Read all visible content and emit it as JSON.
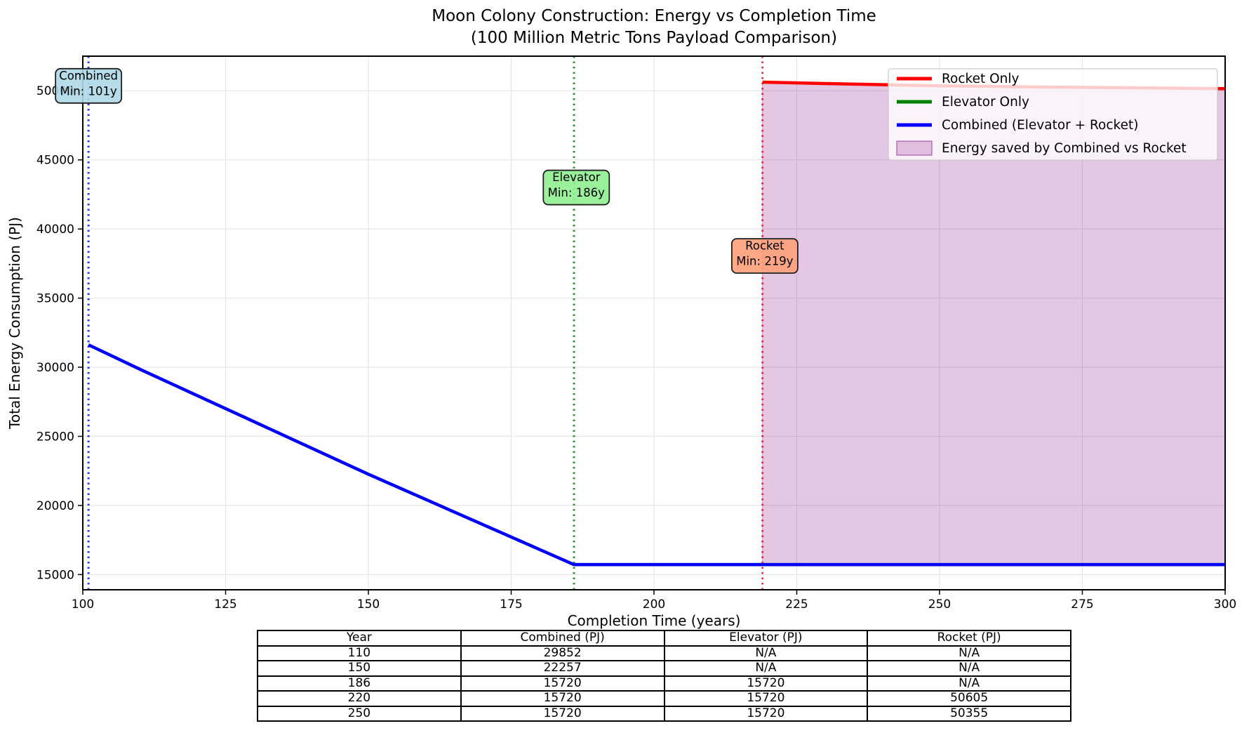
{
  "chart_data": {
    "type": "line",
    "title": "Moon Colony Construction: Energy vs Completion Time",
    "subtitle": "(100 Million Metric Tons Payload Comparison)",
    "xlabel": "Completion Time (years)",
    "ylabel": "Total Energy Consumption (PJ)",
    "xlim": [
      100,
      300
    ],
    "ylim": [
      13900,
      52500
    ],
    "xticks": [
      100,
      125,
      150,
      175,
      200,
      225,
      250,
      275,
      300
    ],
    "yticks": [
      15000,
      20000,
      25000,
      30000,
      35000,
      40000,
      45000,
      50000
    ],
    "grid": true,
    "grid_color": "#e6e6e6",
    "legend_position": "upper right",
    "series": [
      {
        "name": "Rocket Only",
        "color": "#ff0000",
        "x": [
          219,
          230,
          250,
          270,
          300
        ],
        "y": [
          50620,
          50520,
          50355,
          50260,
          50150
        ]
      },
      {
        "name": "Elevator Only",
        "color": "#008000",
        "x": [
          186,
          300
        ],
        "y": [
          15720,
          15720
        ]
      },
      {
        "name": "Combined (Elevator + Rocket)",
        "color": "#0000ff",
        "x": [
          101,
          110,
          150,
          186,
          220,
          250,
          300
        ],
        "y": [
          31620,
          29852,
          22257,
          15720,
          15720,
          15720,
          15720
        ]
      }
    ],
    "fill_between": {
      "name": "Energy saved by Combined vs Rocket",
      "x_start": 219,
      "x_end": 300,
      "baseline": 15720,
      "fill": "rgba(128,0,128,0.22)",
      "edge": "rgba(128,0,128,0.35)"
    },
    "vlines": [
      {
        "x": 101,
        "color": "#0000ff",
        "style": "dotted"
      },
      {
        "x": 186,
        "color": "#008000",
        "style": "dotted"
      },
      {
        "x": 219,
        "color": "#ff0000",
        "style": "dotted"
      }
    ],
    "annotations": [
      {
        "line1": "Combined",
        "line2": "Min: 101y",
        "x": 101,
        "y": 50350,
        "bg": "#add8e6"
      },
      {
        "line1": "Elevator",
        "line2": "Min: 186y",
        "x": 186.4,
        "y": 43000,
        "bg": "#90ee90"
      },
      {
        "line1": "Rocket",
        "line2": "Min: 219y",
        "x": 219.4,
        "y": 38050,
        "bg": "#ffa07a"
      }
    ]
  },
  "data_table": {
    "headers": [
      "Year",
      "Combined (PJ)",
      "Elevator (PJ)",
      "Rocket (PJ)"
    ],
    "rows": [
      [
        "110",
        "29852",
        "N/A",
        "N/A"
      ],
      [
        "150",
        "22257",
        "N/A",
        "N/A"
      ],
      [
        "186",
        "15720",
        "15720",
        "N/A"
      ],
      [
        "220",
        "15720",
        "15720",
        "50605"
      ],
      [
        "250",
        "15720",
        "15720",
        "50355"
      ]
    ]
  }
}
